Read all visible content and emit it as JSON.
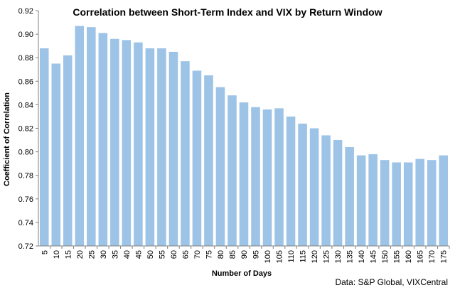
{
  "chart_data": {
    "type": "bar",
    "title": "Correlation between Short-Term Index and VIX by Return Window",
    "xlabel": "Number of Days",
    "ylabel": "Coefficient of Correlation",
    "categories": [
      "5",
      "10",
      "15",
      "20",
      "25",
      "30",
      "35",
      "40",
      "45",
      "50",
      "55",
      "60",
      "65",
      "70",
      "75",
      "80",
      "85",
      "90",
      "95",
      "100",
      "105",
      "110",
      "115",
      "120",
      "125",
      "130",
      "135",
      "140",
      "145",
      "150",
      "155",
      "160",
      "165",
      "170",
      "175"
    ],
    "values": [
      0.888,
      0.875,
      0.882,
      0.907,
      0.906,
      0.901,
      0.896,
      0.895,
      0.893,
      0.888,
      0.888,
      0.885,
      0.877,
      0.869,
      0.865,
      0.855,
      0.848,
      0.842,
      0.838,
      0.836,
      0.837,
      0.83,
      0.824,
      0.82,
      0.814,
      0.81,
      0.804,
      0.797,
      0.798,
      0.793,
      0.791,
      0.791,
      0.794,
      0.793,
      0.797
    ],
    "ylim": [
      0.72,
      0.92
    ],
    "yticks": [
      "0.72",
      "0.74",
      "0.76",
      "0.78",
      "0.80",
      "0.82",
      "0.84",
      "0.86",
      "0.88",
      "0.90",
      "0.92"
    ],
    "bar_color": "#9dc3e6",
    "grid": false,
    "legend": "none",
    "source_note": "Data: S&P Global, VIXCentral"
  }
}
